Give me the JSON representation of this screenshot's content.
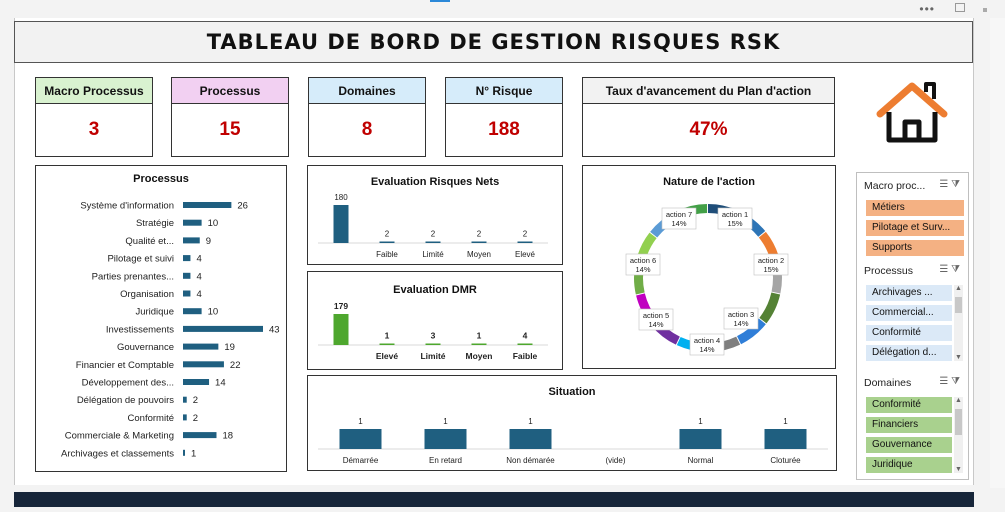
{
  "dashboard_title": "TABLEAU DE BORD DE GESTION RISQUES RSK",
  "kpis": [
    {
      "label": "Macro Processus",
      "value": "3",
      "color": "#d9f2d0"
    },
    {
      "label": "Processus",
      "value": "15",
      "color": "#f2d0f2"
    },
    {
      "label": "Domaines",
      "value": "8",
      "color": "#d6ecfa"
    },
    {
      "label": "N° Risque",
      "value": "188",
      "color": "#d6ecfa"
    },
    {
      "label": "Taux d'avancement du Plan d'action",
      "value": "47%",
      "color": "#f2f2f2"
    }
  ],
  "home_icon": "home-icon",
  "slicers": {
    "macro": {
      "title": "Macro proc...",
      "items": [
        "Métiers",
        "Pilotage et Surv...",
        "Supports"
      ]
    },
    "processus": {
      "title": "Processus",
      "items": [
        "Archivages ...",
        "Commercial...",
        "Conformité",
        "Délégation d..."
      ]
    },
    "domaines": {
      "title": "Domaines",
      "items": [
        "Conformité",
        "Financiers",
        "Gouvernance",
        "Juridique"
      ]
    }
  },
  "chart_data": [
    {
      "type": "bar",
      "orientation": "horizontal",
      "title": "Processus",
      "categories": [
        "Système d'information",
        "Stratégie",
        "Qualité et...",
        "Pilotage et suivi",
        "Parties prenantes...",
        "Organisation",
        "Juridique",
        "Investissements",
        "Gouvernance",
        "Financier et Comptable",
        "Développement des...",
        "Délégation de pouvoirs",
        "Conformité",
        "Commerciale & Marketing",
        "Archivages et classements"
      ],
      "values": [
        26,
        10,
        9,
        4,
        4,
        4,
        10,
        43,
        19,
        22,
        14,
        2,
        2,
        18,
        1
      ],
      "color": "#1f5f80"
    },
    {
      "type": "bar",
      "title": "Evaluation Risques Nets",
      "categories": [
        "",
        "Faible",
        "Limité",
        "Moyen",
        "Elevé"
      ],
      "values": [
        180,
        2,
        2,
        2,
        2
      ],
      "color": "#1f5f80"
    },
    {
      "type": "bar",
      "title": "Evaluation DMR",
      "categories": [
        "",
        "Elevé",
        "Limité",
        "Moyen",
        "Faible"
      ],
      "values": [
        179,
        1,
        3,
        1,
        4
      ],
      "color": "#4ea72e"
    },
    {
      "type": "pie",
      "donut": true,
      "title": "Nature de l'action",
      "slices": [
        {
          "label": "action 1",
          "pct": "15%",
          "value": 15
        },
        {
          "label": "action 2",
          "pct": "15%",
          "value": 15
        },
        {
          "label": "action 3",
          "pct": "14%",
          "value": 14
        },
        {
          "label": "action 4",
          "pct": "14%",
          "value": 14
        },
        {
          "label": "action 5",
          "pct": "14%",
          "value": 14
        },
        {
          "label": "action 6",
          "pct": "14%",
          "value": 14
        },
        {
          "label": "action 7",
          "pct": "14%",
          "value": 14
        }
      ],
      "colors": [
        "#1f4e79",
        "#2e75b6",
        "#ed7d31",
        "#a5a5a5",
        "#548235",
        "#2f7ed8",
        "#7f7f7f",
        "#00b0f0",
        "#7030a0",
        "#c000c0",
        "#70ad47",
        "#92d050",
        "#5b9bd5",
        "#43a047"
      ]
    },
    {
      "type": "bar",
      "title": "Situation",
      "categories": [
        "Démarrée",
        "En retard",
        "Non démarée",
        "(vide)",
        "Normal",
        "Cloturée"
      ],
      "values": [
        1,
        1,
        1,
        null,
        1,
        1
      ],
      "color": "#1f5f80"
    }
  ]
}
